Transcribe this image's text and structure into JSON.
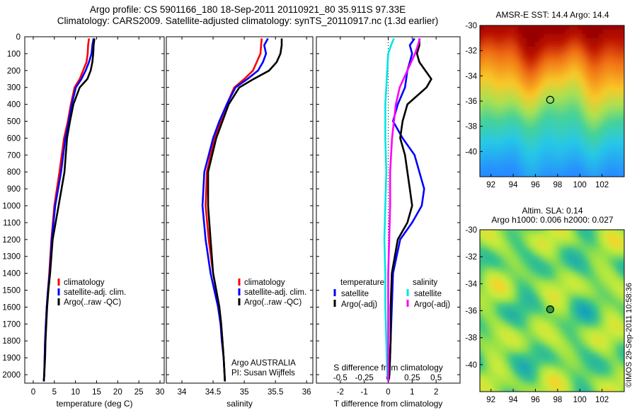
{
  "title": {
    "line1": "Argo profile: CS 5901166_180 18-Sep-2011 20110921_80 35.911S 97.33E",
    "line2": "Climatology: CARS2009. Satellite-adjusted climatology: synTS_20110917.nc (1.3d earlier)"
  },
  "colors": {
    "climatology": "#ff0000",
    "satellite": "#0000ff",
    "argo": "#000000",
    "salinity_satellite": "#00e5e5",
    "salinity_argo": "#ff00ff"
  },
  "chart_data": [
    {
      "type": "line",
      "id": "temperature",
      "xlabel": "temperature (deg C)",
      "ylabel": "",
      "xlim": [
        -2,
        31
      ],
      "ylim": [
        2050,
        0
      ],
      "y_reversed": true,
      "xticks": [
        "0",
        "5",
        "10",
        "15",
        "20",
        "25",
        "30"
      ],
      "yticks": [
        "0",
        "100",
        "200",
        "300",
        "400",
        "500",
        "600",
        "700",
        "800",
        "900",
        "1000",
        "1100",
        "1200",
        "1300",
        "1400",
        "1500",
        "1600",
        "1700",
        "1800",
        "1900",
        "2000"
      ],
      "legend": {
        "placement": "lower-middle",
        "entries": [
          "climatology",
          "satellite-adj. clim.",
          "Argo(..raw -QC)"
        ]
      },
      "series": [
        {
          "name": "climatology",
          "color": "#ff0000",
          "x": [
            13.2,
            13.0,
            12.9,
            12.6,
            11.8,
            11.0,
            9.8,
            8.9,
            8.2,
            7.3,
            6.2,
            5.0,
            4.3,
            3.8,
            3.5,
            3.2,
            3.0,
            2.8,
            2.7,
            2.6,
            2.5
          ],
          "y": [
            10,
            50,
            100,
            150,
            200,
            250,
            300,
            400,
            500,
            600,
            800,
            1000,
            1200,
            1400,
            1500,
            1600,
            1700,
            1800,
            1900,
            2000,
            2040
          ]
        },
        {
          "name": "satellite-adj. clim.",
          "color": "#0000ff",
          "x": [
            14.3,
            14.0,
            13.8,
            13.2,
            12.4,
            11.4,
            10.1,
            9.1,
            8.4,
            7.6,
            6.6,
            5.2,
            4.4,
            3.9,
            3.5,
            3.2,
            3.0,
            2.8,
            2.7,
            2.6,
            2.5
          ],
          "y": [
            10,
            50,
            100,
            150,
            200,
            250,
            300,
            400,
            500,
            600,
            800,
            1000,
            1200,
            1400,
            1500,
            1600,
            1700,
            1800,
            1900,
            2000,
            2040
          ]
        },
        {
          "name": "Argo(..raw -QC)",
          "color": "#000000",
          "x": [
            14.5,
            14.3,
            14.2,
            14.0,
            13.6,
            12.8,
            11.0,
            9.5,
            8.7,
            8.0,
            7.4,
            6.0,
            4.6,
            4.0,
            3.6,
            3.3,
            3.1,
            2.9,
            2.8,
            2.6,
            2.5
          ],
          "y": [
            10,
            50,
            100,
            150,
            200,
            250,
            300,
            400,
            500,
            600,
            800,
            1000,
            1200,
            1400,
            1500,
            1600,
            1700,
            1800,
            1900,
            2000,
            2040
          ]
        }
      ]
    },
    {
      "type": "line",
      "id": "salinity",
      "xlabel": "salinity",
      "ylabel": "",
      "xlim": [
        33.75,
        36.1
      ],
      "ylim": [
        2050,
        0
      ],
      "y_reversed": true,
      "xticks": [
        "34",
        "34.5",
        "35",
        "35.5",
        "36"
      ],
      "legend": {
        "placement": "lower-right",
        "entries": [
          "climatology",
          "satellite-adj. clim.",
          "Argo(..raw -QC)"
        ]
      },
      "annotation": {
        "line1": "Argo AUSTRALIA",
        "line2": "PI: Susan Wijffels"
      },
      "series": [
        {
          "name": "climatology",
          "color": "#ff0000",
          "x": [
            35.28,
            35.27,
            35.26,
            35.2,
            35.14,
            35.0,
            34.84,
            34.72,
            34.62,
            34.52,
            34.4,
            34.38,
            34.43,
            34.5,
            34.55,
            34.6,
            34.63,
            34.65,
            34.67,
            34.69
          ],
          "y": [
            10,
            50,
            100,
            150,
            200,
            250,
            300,
            400,
            500,
            600,
            800,
            1000,
            1200,
            1400,
            1500,
            1600,
            1700,
            1800,
            1900,
            2040
          ]
        },
        {
          "name": "satellite-adj. clim.",
          "color": "#0000ff",
          "x": [
            35.38,
            35.32,
            35.35,
            35.3,
            35.22,
            35.05,
            34.86,
            34.72,
            34.6,
            34.5,
            34.36,
            34.33,
            34.38,
            34.46,
            34.52,
            34.58,
            34.62,
            34.64,
            34.67,
            34.69
          ],
          "y": [
            10,
            50,
            100,
            150,
            200,
            250,
            300,
            400,
            500,
            600,
            800,
            1000,
            1200,
            1400,
            1500,
            1600,
            1700,
            1800,
            1900,
            2040
          ]
        },
        {
          "name": "Argo(..raw -QC)",
          "color": "#000000",
          "x": [
            35.6,
            35.6,
            35.58,
            35.52,
            35.4,
            35.15,
            34.92,
            34.75,
            34.65,
            34.55,
            34.42,
            34.42,
            34.46,
            34.5,
            34.55,
            34.6,
            34.63,
            34.65,
            34.67,
            34.69
          ],
          "y": [
            10,
            50,
            100,
            150,
            200,
            250,
            300,
            400,
            500,
            600,
            800,
            1000,
            1200,
            1400,
            1500,
            1600,
            1700,
            1800,
            1900,
            2040
          ]
        }
      ]
    },
    {
      "type": "line",
      "id": "difference",
      "xlabel": "T difference from climatology",
      "xlabel_top": "S difference from climatology",
      "xlim": [
        -3.0,
        3.0
      ],
      "ylim": [
        2050,
        0
      ],
      "y_reversed": true,
      "xticks": [
        "-2",
        "-1",
        "0",
        "1",
        "2"
      ],
      "xticks_top": [
        "-0.5",
        "-0.25",
        "0",
        "0.25",
        "0.5"
      ],
      "legend": {
        "placement": "lower-middle",
        "temperature_title": "temperature",
        "salinity_title": "salinity",
        "entries": [
          "satellite",
          "Argo(-adj)",
          "satellite",
          "Argo(-adj)"
        ]
      },
      "series": [
        {
          "name": "satellite",
          "group": "temperature",
          "color": "#0000ff",
          "x": [
            1.1,
            0.9,
            1.0,
            0.9,
            0.8,
            0.7,
            0.4,
            0.3,
            0.2,
            0.6,
            1.1,
            1.3,
            1.5,
            1.4,
            1.0,
            0.5,
            0.2,
            0.15,
            0.1,
            0.05,
            0.0
          ],
          "y": [
            10,
            50,
            100,
            150,
            200,
            300,
            400,
            450,
            500,
            600,
            700,
            800,
            900,
            1000,
            1100,
            1200,
            1400,
            1600,
            1800,
            2000,
            2040
          ]
        },
        {
          "name": "Argo(-adj)",
          "group": "temperature",
          "color": "#000000",
          "x": [
            1.3,
            1.3,
            1.2,
            1.3,
            1.8,
            1.6,
            0.8,
            0.6,
            0.5,
            0.7,
            0.8,
            0.9,
            1.0,
            0.8,
            0.4,
            0.15,
            0.1,
            0.1,
            0.05,
            0.0
          ],
          "y": [
            10,
            50,
            100,
            150,
            250,
            300,
            400,
            500,
            600,
            700,
            800,
            900,
            1000,
            1100,
            1200,
            1400,
            1600,
            1800,
            2000,
            2040
          ]
        },
        {
          "name": "satellite",
          "group": "salinity",
          "color": "#00e5e5",
          "x": [
            0.06,
            0.03,
            0.0,
            -0.01,
            -0.02,
            -0.03,
            -0.03,
            -0.02,
            -0.03,
            -0.04,
            -0.03,
            -0.03,
            -0.02,
            -0.01,
            0.0
          ],
          "y": [
            10,
            50,
            100,
            200,
            300,
            400,
            600,
            800,
            1000,
            1200,
            1400,
            1600,
            1800,
            2000,
            2040
          ]
        },
        {
          "name": "Argo(-adj)",
          "group": "salinity",
          "color": "#ff00ff",
          "x": [
            0.33,
            0.31,
            0.28,
            0.2,
            0.12,
            0.08,
            0.04,
            0.02,
            0.02,
            0.01,
            0.0,
            0.0,
            0.0
          ],
          "y": [
            10,
            50,
            100,
            200,
            300,
            400,
            600,
            800,
            1000,
            1200,
            1400,
            1800,
            2040
          ]
        }
      ]
    },
    {
      "type": "heatmap",
      "id": "sst-map",
      "title": "AMSR-E SST: 14.4  Argo: 14.4",
      "xlim": [
        91,
        104
      ],
      "ylim": [
        -42,
        -30
      ],
      "xticks": [
        "92",
        "94",
        "96",
        "98",
        "100",
        "102"
      ],
      "yticks": [
        "-30",
        "-32",
        "-34",
        "-36",
        "-38",
        "-40"
      ],
      "marker": {
        "lon": 97.33,
        "lat": -35.9
      }
    },
    {
      "type": "heatmap",
      "id": "sla-map",
      "title_line1": "Altim. SLA: 0.14",
      "title_line2": "Argo h1000: 0.006 h2000: 0.027",
      "xlim": [
        91,
        104
      ],
      "ylim": [
        -42,
        -30
      ],
      "xticks": [
        "92",
        "94",
        "96",
        "98",
        "100",
        "102"
      ],
      "yticks": [
        "-30",
        "-32",
        "-34",
        "-36",
        "-38",
        "-40"
      ],
      "marker": {
        "lon": 97.33,
        "lat": -35.9
      }
    }
  ],
  "credit": "©IMOS 29-Sep-2011 10:58:36"
}
